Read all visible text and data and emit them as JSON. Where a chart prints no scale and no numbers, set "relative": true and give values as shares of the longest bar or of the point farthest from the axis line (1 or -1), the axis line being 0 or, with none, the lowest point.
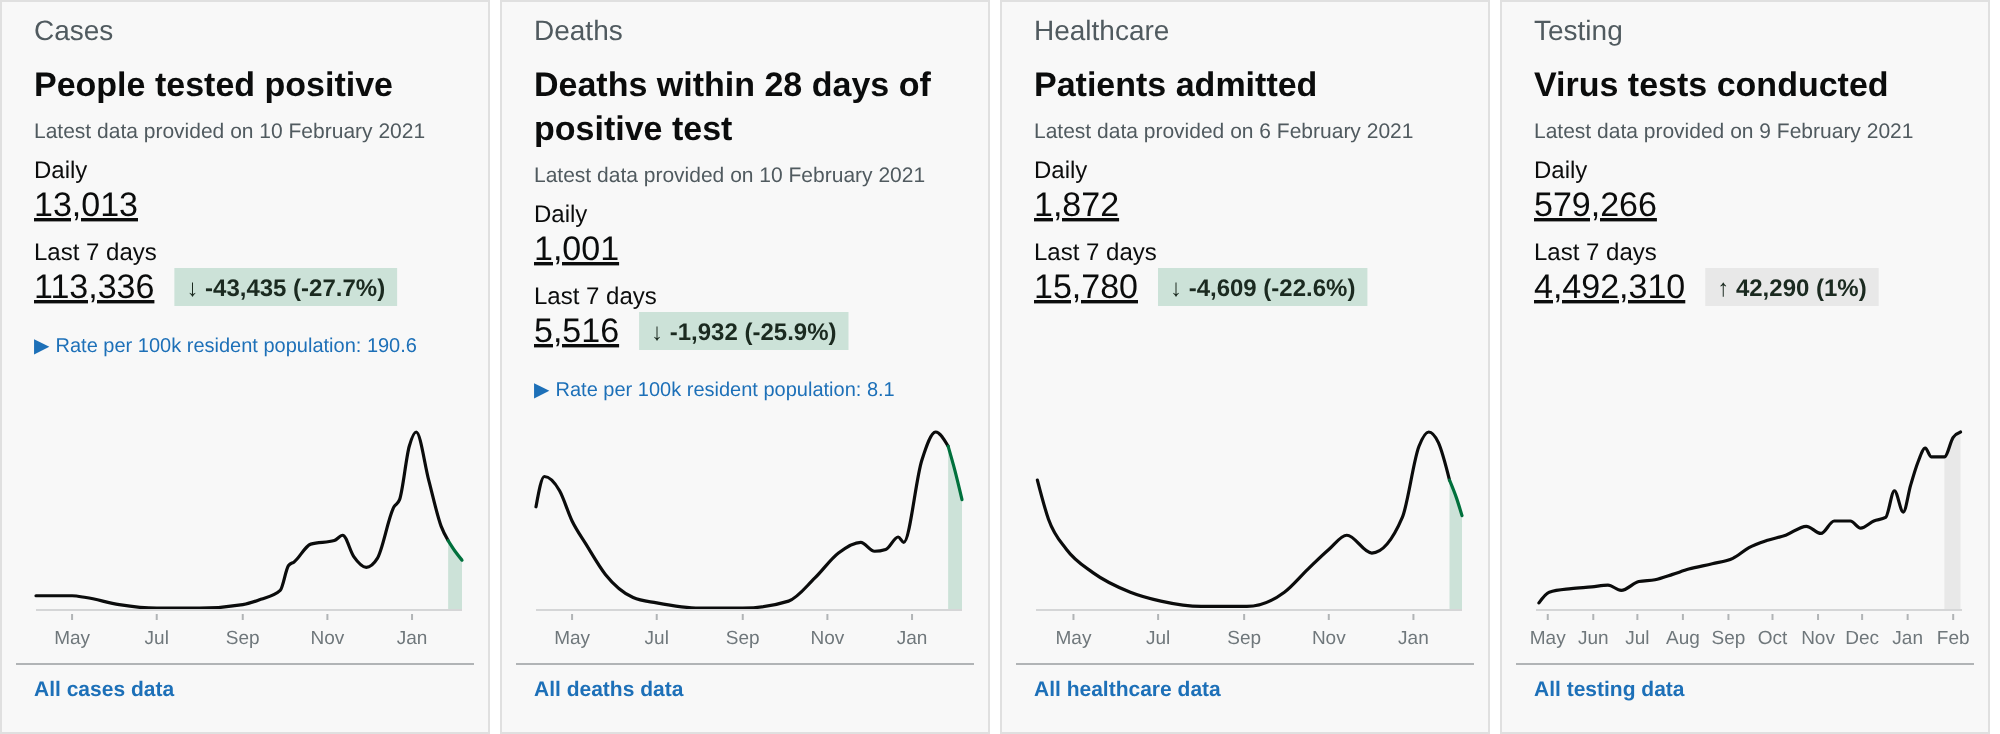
{
  "chart_data": [
    {
      "type": "line",
      "subtitle": "Cases",
      "title": "People tested positive",
      "annotations": [
        "Latest data provided on 10 February 2021",
        "Daily",
        "13,013",
        "Last 7 days",
        "113,336",
        "↓ -43,435 (-27.7%)",
        "All cases data",
        "▶ Rate per 100k resident population: 190.6"
      ],
      "relative": true,
      "xlim": [
        "2020-04-05",
        "2021-02-06"
      ],
      "xticks": [
        {
          "value": "2020-05-01",
          "label": "May"
        },
        {
          "value": "2020-07-01",
          "label": "Jul"
        },
        {
          "value": "2020-09-01",
          "label": "Sep"
        },
        {
          "value": "2020-11-01",
          "label": "Nov"
        },
        {
          "value": "2021-01-01",
          "label": "Jan"
        }
      ],
      "series": [
        {
          "type": "area",
          "color": "#cce2d8",
          "x": [
            "2021-01-27",
            "2021-02-01",
            "2021-02-06"
          ],
          "values": [
            0.39,
            0.33,
            0.28
          ]
        },
        {
          "color": "#0b0c0c",
          "x": [
            "2020-04-05",
            "2020-05-01",
            "2020-05-11",
            "2020-06-04",
            "2020-07-01",
            "2020-08-01",
            "2020-09-01",
            "2020-09-14",
            "2020-09-28",
            "2020-10-04",
            "2020-10-08",
            "2020-10-20",
            "2020-11-06",
            "2020-11-12",
            "2020-11-20",
            "2020-11-29",
            "2020-12-07",
            "2020-12-19",
            "2020-12-23",
            "2020-12-30",
            "2021-01-04",
            "2021-01-13",
            "2021-01-22",
            "2021-01-27"
          ],
          "values": [
            0.08,
            0.08,
            0.07,
            0.03,
            0.01,
            0.01,
            0.03,
            0.06,
            0.11,
            0.25,
            0.27,
            0.37,
            0.39,
            0.42,
            0.3,
            0.24,
            0.29,
            0.58,
            0.62,
            0.92,
            1.0,
            0.73,
            0.47,
            0.39
          ]
        },
        {
          "color": "#00703c",
          "x": [
            "2021-01-27",
            "2021-02-01",
            "2021-02-06"
          ],
          "values": [
            0.39,
            0.33,
            0.28
          ]
        }
      ]
    },
    {
      "type": "line",
      "subtitle": "Deaths",
      "title": "Deaths within 28 days of positive test",
      "annotations": [
        "Latest data provided on 10 February 2021",
        "Daily",
        "1,001",
        "Last 7 days",
        "5,516",
        "↓ -1,932 (-25.9%)",
        "All deaths data",
        "▶ Rate per 100k resident population: 8.1"
      ],
      "relative": true,
      "xlim": [
        "2020-04-05",
        "2021-02-06"
      ],
      "xticks": [
        {
          "value": "2020-05-01",
          "label": "May"
        },
        {
          "value": "2020-07-01",
          "label": "Jul"
        },
        {
          "value": "2020-09-01",
          "label": "Sep"
        },
        {
          "value": "2020-11-01",
          "label": "Nov"
        },
        {
          "value": "2021-01-01",
          "label": "Jan"
        }
      ],
      "series": [
        {
          "type": "area",
          "color": "#cce2d8",
          "x": [
            "2021-01-27",
            "2021-02-01",
            "2021-02-06"
          ],
          "values": [
            0.92,
            0.78,
            0.62
          ]
        },
        {
          "color": "#0b0c0c",
          "x": [
            "2020-04-05",
            "2020-04-11",
            "2020-04-22",
            "2020-05-01",
            "2020-05-11",
            "2020-05-25",
            "2020-06-14",
            "2020-07-01",
            "2020-08-01",
            "2020-09-01",
            "2020-10-04",
            "2020-10-23",
            "2020-11-09",
            "2020-11-25",
            "2020-12-05",
            "2020-12-13",
            "2020-12-22",
            "2020-12-26",
            "2021-01-08",
            "2021-01-18",
            "2021-01-27"
          ],
          "values": [
            0.58,
            0.75,
            0.67,
            0.5,
            0.37,
            0.2,
            0.07,
            0.04,
            0.01,
            0.01,
            0.05,
            0.18,
            0.32,
            0.38,
            0.33,
            0.34,
            0.41,
            0.38,
            0.84,
            1.0,
            0.92
          ]
        },
        {
          "color": "#00703c",
          "x": [
            "2021-01-27",
            "2021-02-01",
            "2021-02-06"
          ],
          "values": [
            0.92,
            0.78,
            0.62
          ]
        }
      ]
    },
    {
      "type": "line",
      "subtitle": "Healthcare",
      "title": "Patients admitted",
      "annotations": [
        "Latest data provided on 6 February 2021",
        "Daily",
        "1,872",
        "Last 7 days",
        "15,780",
        "↓ -4,609 (-22.6%)",
        "All healthcare data"
      ],
      "relative": true,
      "xlim": [
        "2020-04-04",
        "2021-02-05"
      ],
      "xticks": [
        {
          "value": "2020-05-01",
          "label": "May"
        },
        {
          "value": "2020-07-01",
          "label": "Jul"
        },
        {
          "value": "2020-09-01",
          "label": "Sep"
        },
        {
          "value": "2020-11-01",
          "label": "Nov"
        },
        {
          "value": "2021-01-01",
          "label": "Jan"
        }
      ],
      "series": [
        {
          "type": "area",
          "color": "#cce2d8",
          "x": [
            "2021-01-27",
            "2021-02-01",
            "2021-02-05"
          ],
          "values": [
            0.73,
            0.63,
            0.53
          ]
        },
        {
          "color": "#0b0c0c",
          "x": [
            "2020-04-05",
            "2020-04-13",
            "2020-04-26",
            "2020-05-15",
            "2020-06-11",
            "2020-07-03",
            "2020-08-01",
            "2020-09-03",
            "2020-09-30",
            "2020-10-17",
            "2020-11-01",
            "2020-11-14",
            "2020-12-02",
            "2020-12-24",
            "2021-01-05",
            "2021-01-12",
            "2021-01-19",
            "2021-01-27"
          ],
          "values": [
            0.73,
            0.51,
            0.34,
            0.21,
            0.1,
            0.05,
            0.02,
            0.02,
            0.1,
            0.23,
            0.34,
            0.42,
            0.32,
            0.52,
            0.92,
            1.0,
            0.94,
            0.73
          ]
        },
        {
          "color": "#00703c",
          "x": [
            "2021-01-27",
            "2021-02-01",
            "2021-02-05"
          ],
          "values": [
            0.73,
            0.63,
            0.53
          ]
        }
      ]
    },
    {
      "type": "line",
      "subtitle": "Testing",
      "title": "Virus tests conducted",
      "annotations": [
        "Latest data provided on 9 February 2021",
        "Daily",
        "579,266",
        "Last 7 days",
        "4,492,310",
        "↑ 42,290 (1%)",
        "All testing data"
      ],
      "relative": true,
      "xlim": [
        "2020-04-23",
        "2021-02-07"
      ],
      "xticks": [
        {
          "value": "2020-05-01",
          "label": "May"
        },
        {
          "value": "2020-06-01",
          "label": "Jun"
        },
        {
          "value": "2020-07-01",
          "label": "Jul"
        },
        {
          "value": "2020-08-01",
          "label": "Aug"
        },
        {
          "value": "2020-09-01",
          "label": "Sep"
        },
        {
          "value": "2020-10-01",
          "label": "Oct"
        },
        {
          "value": "2020-11-01",
          "label": "Nov"
        },
        {
          "value": "2020-12-01",
          "label": "Dec"
        },
        {
          "value": "2021-01-01",
          "label": "Jan"
        },
        {
          "value": "2021-02-01",
          "label": "Feb"
        }
      ],
      "series": [
        {
          "type": "area",
          "color": "#e8e8e8",
          "x": [
            "2021-01-26",
            "2021-02-01",
            "2021-02-06"
          ],
          "values": [
            0.86,
            0.97,
            1.0
          ]
        },
        {
          "color": "#0b0c0c",
          "x": [
            "2020-04-25",
            "2020-05-02",
            "2020-05-17",
            "2020-05-31",
            "2020-06-11",
            "2020-06-20",
            "2020-07-02",
            "2020-07-13",
            "2020-07-25",
            "2020-08-05",
            "2020-08-21",
            "2020-09-04",
            "2020-09-15",
            "2020-09-27",
            "2020-10-10",
            "2020-10-24",
            "2020-11-03",
            "2020-11-12",
            "2020-11-23",
            "2020-11-30",
            "2020-12-09",
            "2020-12-17",
            "2020-12-23",
            "2020-12-29",
            "2021-01-03",
            "2021-01-08",
            "2021-01-13",
            "2021-01-17",
            "2021-01-26",
            "2021-02-01",
            "2021-02-06"
          ],
          "values": [
            0.04,
            0.1,
            0.12,
            0.13,
            0.14,
            0.11,
            0.16,
            0.17,
            0.2,
            0.23,
            0.26,
            0.29,
            0.35,
            0.39,
            0.42,
            0.47,
            0.43,
            0.5,
            0.5,
            0.46,
            0.5,
            0.52,
            0.67,
            0.55,
            0.7,
            0.83,
            0.91,
            0.86,
            0.86,
            0.97,
            1.0
          ]
        }
      ]
    }
  ]
}
